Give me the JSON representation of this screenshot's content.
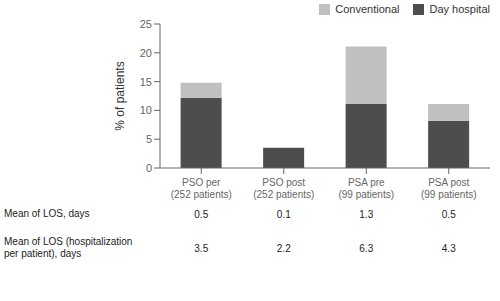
{
  "chart_data": {
    "type": "bar",
    "stacked": true,
    "ylabel": "% of patients",
    "categories": [
      "PSO per\n(252 patients)",
      "PSO post\n(252 patients)",
      "PSA pre\n(99 patients)",
      "PSA post\n(99 patients)"
    ],
    "series": [
      {
        "name": "Day hospital",
        "color": "#4d4d4d",
        "values": [
          12.2,
          3.5,
          11.1,
          8.2
        ]
      },
      {
        "name": "Conventional",
        "color": "#c0c0c0",
        "values": [
          2.6,
          0.0,
          10.0,
          2.9
        ]
      }
    ],
    "ylim": [
      0,
      25
    ],
    "yticks": [
      0,
      5,
      10,
      15,
      20,
      25
    ],
    "grid": false,
    "legend": "upper right",
    "table": [
      {
        "label": "Mean of LOS, days",
        "values": [
          "0.5",
          "0.1",
          "1.3",
          "0.5"
        ]
      },
      {
        "label": "Mean of LOS (hospitalization\nper patient), days",
        "values": [
          "3.5",
          "2.2",
          "6.3",
          "4.3"
        ]
      }
    ]
  }
}
